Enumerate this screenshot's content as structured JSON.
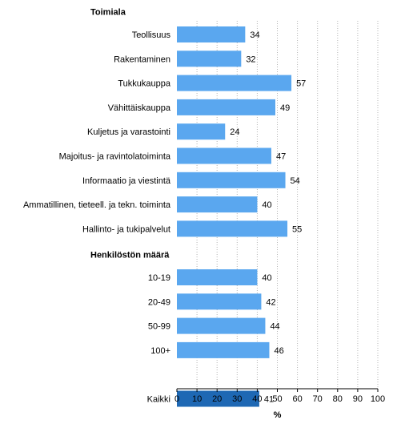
{
  "chart_data": {
    "type": "bar",
    "orientation": "horizontal",
    "xlabel": "%",
    "xlim": [
      0,
      100
    ],
    "xticks": [
      0,
      10,
      20,
      30,
      40,
      50,
      60,
      70,
      80,
      90,
      100
    ],
    "grid": "vertical-dotted",
    "colors": {
      "default": "#5aa7ef",
      "highlight": "#1e68b4",
      "grid": "#b3b3b3",
      "axis": "#000000"
    },
    "groups": [
      {
        "title": "Toimiala",
        "categories": [
          "Teollisuus",
          "Rakentaminen",
          "Tukkukauppa",
          "Vähittäiskauppa",
          "Kuljetus ja varastointi",
          "Majoitus- ja ravintolatoiminta",
          "Informaatio ja viestintä",
          "Ammatillinen, tieteell. ja tekn. toiminta",
          "Hallinto- ja tukipalvelut"
        ],
        "values": [
          34,
          32,
          57,
          49,
          24,
          47,
          54,
          40,
          55
        ]
      },
      {
        "title": "Henkilöstön määrä",
        "categories": [
          "10-19",
          "20-49",
          "50-99",
          "100+"
        ],
        "values": [
          40,
          42,
          44,
          46
        ]
      },
      {
        "title": "",
        "categories": [
          "Kaikki"
        ],
        "values": [
          41
        ],
        "highlight": true
      }
    ]
  }
}
